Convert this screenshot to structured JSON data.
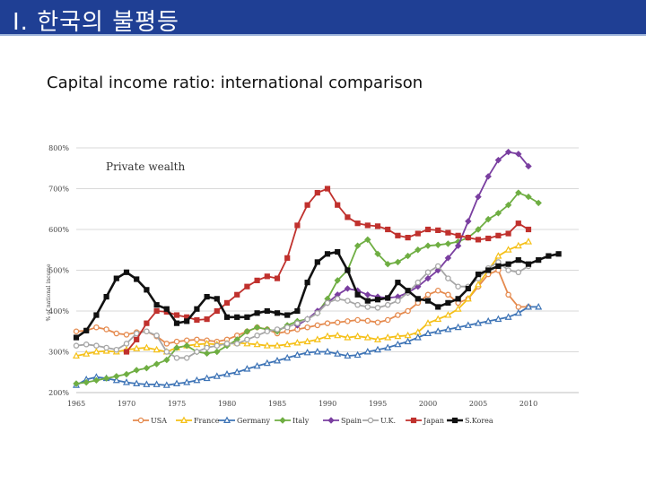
{
  "slide": {
    "title": "Ⅰ. 한국의 불평등",
    "subtitle": "Capital income ratio: international comparison"
  },
  "chart_data": {
    "type": "line",
    "title": "Capital income ratio: international comparison",
    "annotation": "Private wealth",
    "ylabel": "% of national income",
    "xlabel": "",
    "xlim": [
      1965,
      2015
    ],
    "ylim": [
      200,
      800
    ],
    "x_ticks": [
      1965,
      1970,
      1975,
      1980,
      1985,
      1990,
      1995,
      2000,
      2005,
      2010
    ],
    "y_ticks": [
      "200%",
      "300%",
      "400%",
      "500%",
      "600%",
      "700%",
      "800%"
    ],
    "y_tick_values": [
      200,
      300,
      400,
      500,
      600,
      700,
      800
    ],
    "grid": true,
    "legend_position": "bottom",
    "series": [
      {
        "name": "USA",
        "color": "#e58a4e",
        "marker": "circle",
        "x": [
          1965,
          1966,
          1967,
          1968,
          1969,
          1970,
          1971,
          1972,
          1973,
          1974,
          1975,
          1976,
          1977,
          1978,
          1979,
          1980,
          1981,
          1982,
          1983,
          1984,
          1985,
          1986,
          1987,
          1988,
          1989,
          1990,
          1991,
          1992,
          1993,
          1994,
          1995,
          1996,
          1997,
          1998,
          1999,
          2000,
          2001,
          2002,
          2003,
          2004,
          2005,
          2006,
          2007,
          2008,
          2009,
          2010
        ],
        "values": [
          350,
          352,
          360,
          355,
          345,
          342,
          348,
          350,
          338,
          320,
          325,
          328,
          330,
          328,
          325,
          330,
          340,
          350,
          360,
          355,
          345,
          350,
          355,
          360,
          365,
          370,
          372,
          375,
          378,
          376,
          372,
          378,
          390,
          400,
          420,
          440,
          450,
          440,
          420,
          430,
          460,
          490,
          500,
          440,
          410,
          410
        ]
      },
      {
        "name": "France",
        "color": "#f5c017",
        "marker": "triangle",
        "x": [
          1965,
          1966,
          1967,
          1968,
          1969,
          1970,
          1971,
          1972,
          1973,
          1974,
          1975,
          1976,
          1977,
          1978,
          1979,
          1980,
          1981,
          1982,
          1983,
          1984,
          1985,
          1986,
          1987,
          1988,
          1989,
          1990,
          1991,
          1992,
          1993,
          1994,
          1995,
          1996,
          1997,
          1998,
          1999,
          2000,
          2001,
          2002,
          2003,
          2004,
          2005,
          2006,
          2007,
          2008,
          2009,
          2010
        ],
        "values": [
          290,
          295,
          300,
          302,
          300,
          305,
          308,
          310,
          305,
          300,
          310,
          315,
          318,
          320,
          318,
          320,
          322,
          320,
          318,
          315,
          315,
          318,
          322,
          325,
          330,
          338,
          340,
          335,
          338,
          335,
          330,
          335,
          338,
          340,
          348,
          370,
          380,
          390,
          405,
          430,
          465,
          500,
          535,
          550,
          560,
          570
        ]
      },
      {
        "name": "Germany",
        "color": "#3e74b6",
        "marker": "triangle",
        "x": [
          1965,
          1966,
          1967,
          1968,
          1969,
          1970,
          1971,
          1972,
          1973,
          1974,
          1975,
          1976,
          1977,
          1978,
          1979,
          1980,
          1981,
          1982,
          1983,
          1984,
          1985,
          1986,
          1987,
          1988,
          1989,
          1990,
          1991,
          1992,
          1993,
          1994,
          1995,
          1996,
          1997,
          1998,
          1999,
          2000,
          2001,
          2002,
          2003,
          2004,
          2005,
          2006,
          2007,
          2008,
          2009,
          2010,
          2011
        ],
        "values": [
          218,
          232,
          238,
          235,
          230,
          225,
          222,
          220,
          220,
          218,
          222,
          225,
          230,
          235,
          240,
          245,
          250,
          258,
          265,
          272,
          278,
          285,
          292,
          298,
          300,
          300,
          295,
          290,
          292,
          300,
          305,
          310,
          318,
          325,
          335,
          345,
          350,
          355,
          360,
          365,
          370,
          375,
          380,
          385,
          395,
          410,
          410
        ]
      },
      {
        "name": "Italy",
        "color": "#6fae43",
        "marker": "diamond",
        "x": [
          1965,
          1966,
          1967,
          1968,
          1969,
          1970,
          1971,
          1972,
          1973,
          1974,
          1975,
          1976,
          1977,
          1978,
          1979,
          1980,
          1981,
          1982,
          1983,
          1984,
          1985,
          1986,
          1987,
          1988,
          1989,
          1990,
          1991,
          1992,
          1993,
          1994,
          1995,
          1996,
          1997,
          1998,
          1999,
          2000,
          2001,
          2002,
          2003,
          2004,
          2005,
          2006,
          2007,
          2008,
          2009,
          2010,
          2011
        ],
        "values": [
          222,
          225,
          230,
          235,
          240,
          245,
          255,
          260,
          270,
          280,
          310,
          315,
          300,
          296,
          300,
          315,
          330,
          350,
          360,
          355,
          350,
          365,
          375,
          380,
          395,
          430,
          475,
          500,
          560,
          575,
          540,
          515,
          520,
          535,
          550,
          560,
          562,
          565,
          570,
          580,
          600,
          625,
          640,
          660,
          690,
          680,
          665
        ]
      },
      {
        "name": "Spain",
        "color": "#7a3fa0",
        "marker": "diamond",
        "x": [
          1987,
          1988,
          1989,
          1990,
          1991,
          1992,
          1993,
          1994,
          1995,
          1996,
          1997,
          1998,
          1999,
          2000,
          2001,
          2002,
          2003,
          2004,
          2005,
          2006,
          2007,
          2008,
          2009,
          2010
        ],
        "values": [
          365,
          380,
          400,
          420,
          440,
          455,
          450,
          440,
          435,
          432,
          435,
          445,
          460,
          480,
          500,
          530,
          560,
          620,
          680,
          730,
          770,
          790,
          785,
          755
        ]
      },
      {
        "name": "U.K.",
        "color": "#a6a6a6",
        "marker": "circle",
        "x": [
          1965,
          1966,
          1967,
          1968,
          1969,
          1970,
          1971,
          1972,
          1973,
          1974,
          1975,
          1976,
          1977,
          1978,
          1979,
          1980,
          1981,
          1982,
          1983,
          1984,
          1985,
          1986,
          1987,
          1988,
          1989,
          1990,
          1991,
          1992,
          1993,
          1994,
          1995,
          1996,
          1997,
          1998,
          1999,
          2000,
          2001,
          2002,
          2003,
          2004,
          2005,
          2006,
          2007,
          2008,
          2009,
          2010
        ],
        "values": [
          315,
          318,
          315,
          310,
          305,
          320,
          345,
          350,
          340,
          300,
          285,
          285,
          300,
          310,
          315,
          320,
          320,
          330,
          340,
          350,
          355,
          360,
          370,
          380,
          395,
          420,
          430,
          425,
          415,
          410,
          408,
          415,
          425,
          445,
          470,
          495,
          510,
          480,
          460,
          460,
          480,
          505,
          520,
          500,
          495,
          510
        ]
      },
      {
        "name": "Japan",
        "color": "#c0312d",
        "marker": "square",
        "x": [
          1970,
          1971,
          1972,
          1973,
          1974,
          1975,
          1976,
          1977,
          1978,
          1979,
          1980,
          1981,
          1982,
          1983,
          1984,
          1985,
          1986,
          1987,
          1988,
          1989,
          1990,
          1991,
          1992,
          1993,
          1994,
          1995,
          1996,
          1997,
          1998,
          1999,
          2000,
          2001,
          2002,
          2003,
          2004,
          2005,
          2006,
          2007,
          2008,
          2009,
          2010
        ],
        "values": [
          300,
          330,
          370,
          400,
          398,
          390,
          385,
          378,
          380,
          400,
          420,
          440,
          460,
          475,
          485,
          480,
          530,
          610,
          660,
          690,
          700,
          660,
          630,
          615,
          610,
          608,
          600,
          585,
          580,
          590,
          600,
          598,
          592,
          585,
          580,
          575,
          578,
          585,
          590,
          615,
          600
        ]
      },
      {
        "name": "S.Korea",
        "color": "#111111",
        "marker": "square",
        "x": [
          1965,
          1966,
          1967,
          1968,
          1969,
          1970,
          1971,
          1972,
          1973,
          1974,
          1975,
          1976,
          1977,
          1978,
          1979,
          1980,
          1981,
          1982,
          1983,
          1984,
          1985,
          1986,
          1987,
          1988,
          1989,
          1990,
          1991,
          1992,
          1993,
          1994,
          1995,
          1996,
          1997,
          1998,
          1999,
          2000,
          2001,
          2002,
          2003,
          2004,
          2005,
          2006,
          2007,
          2008,
          2009,
          2010,
          2011,
          2012,
          2013
        ],
        "values": [
          335,
          352,
          390,
          435,
          480,
          495,
          478,
          452,
          415,
          405,
          370,
          375,
          405,
          435,
          430,
          385,
          385,
          385,
          395,
          400,
          395,
          390,
          400,
          470,
          520,
          540,
          545,
          500,
          440,
          425,
          428,
          432,
          470,
          450,
          430,
          425,
          410,
          420,
          430,
          455,
          490,
          500,
          510,
          515,
          525,
          515,
          525,
          535,
          540
        ]
      }
    ]
  }
}
